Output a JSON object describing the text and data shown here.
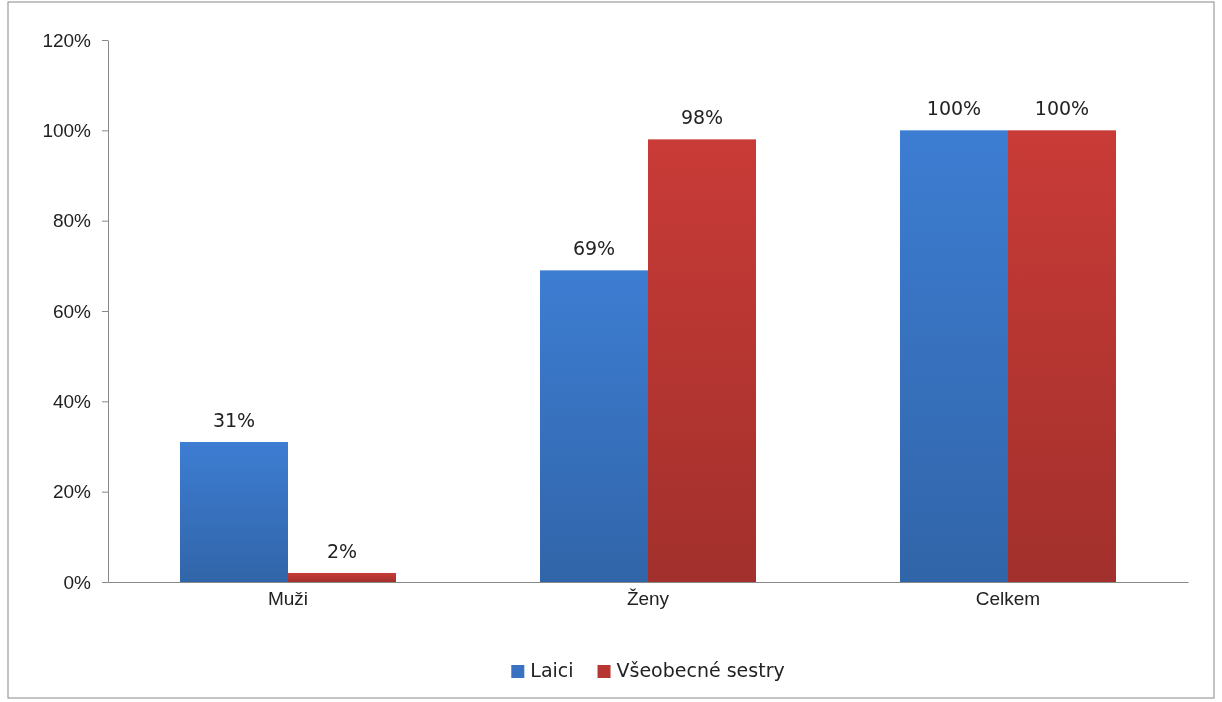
{
  "chart_data": {
    "type": "bar",
    "categories": [
      "Muži",
      "Ženy",
      "Celkem"
    ],
    "series": [
      {
        "name": "Laici",
        "color": "#3872c0",
        "values": [
          31,
          69,
          100
        ],
        "value_labels": [
          "31%",
          "69%",
          "100%"
        ]
      },
      {
        "name": "Všeobecné sestry",
        "color": "#b83632",
        "values": [
          2,
          98,
          100
        ],
        "value_labels": [
          "2%",
          "98%",
          "100%"
        ]
      }
    ],
    "ylim": [
      0,
      120
    ],
    "yticks": [
      {
        "value": 0,
        "label": "0%"
      },
      {
        "value": 20,
        "label": "20%"
      },
      {
        "value": 40,
        "label": "40%"
      },
      {
        "value": 60,
        "label": "60%"
      },
      {
        "value": 80,
        "label": "80%"
      },
      {
        "value": 100,
        "label": "100%"
      },
      {
        "value": 120,
        "label": "120%"
      }
    ],
    "grid": false,
    "legend": "bottom"
  }
}
